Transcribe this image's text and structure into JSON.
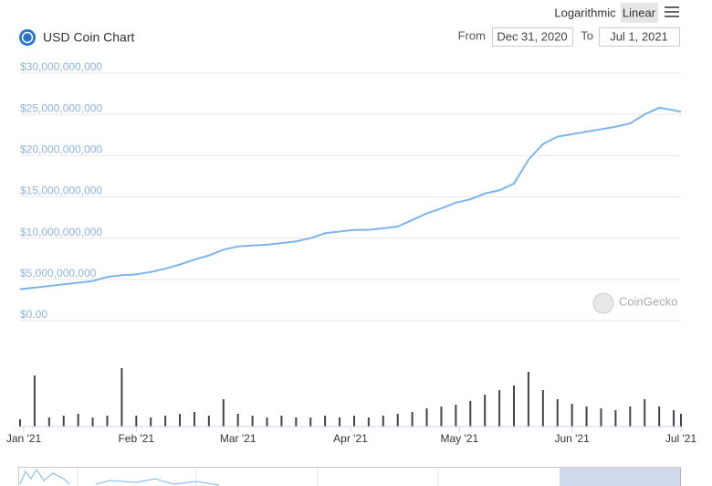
{
  "controls": {
    "scale_options": [
      "Logarithmic",
      "Linear"
    ],
    "from_label": "From",
    "from": "Dec 31, 2020",
    "to_label": "To",
    "to": "Jul 1, 2021"
  },
  "watermark": "CoinGecko",
  "chart_data": [
    {
      "type": "line",
      "title": "USD Coin Chart",
      "color": "#7cb5ec",
      "x": [
        0,
        4,
        8,
        12,
        16,
        20,
        24,
        28,
        32,
        36,
        40,
        44,
        48,
        52,
        56,
        60,
        64,
        68,
        72,
        76,
        80,
        84,
        88,
        92,
        96,
        100,
        104,
        108,
        112,
        116,
        120,
        124,
        128,
        132,
        136,
        140,
        144,
        148,
        152,
        156,
        160,
        164,
        168,
        172,
        176,
        180,
        182
      ],
      "values": [
        3800000000,
        4000000000,
        4200000000,
        4400000000,
        4600000000,
        4800000000,
        5300000000,
        5500000000,
        5600000000,
        5900000000,
        6300000000,
        6800000000,
        7400000000,
        7900000000,
        8600000000,
        9000000000,
        9100000000,
        9200000000,
        9400000000,
        9600000000,
        10000000000,
        10600000000,
        10800000000,
        11000000000,
        11000000000,
        11200000000,
        11400000000,
        12200000000,
        13000000000,
        13600000000,
        14300000000,
        14700000000,
        15400000000,
        15800000000,
        16600000000,
        19500000000,
        21400000000,
        22300000000,
        22600000000,
        22900000000,
        23200000000,
        23500000000,
        23900000000,
        25000000000,
        25800000000,
        25500000000,
        25300000000
      ],
      "xlim": [
        0,
        182
      ],
      "xticks": [
        {
          "value": 1,
          "label": "Jan '21"
        },
        {
          "value": 32,
          "label": "Feb '21"
        },
        {
          "value": 60,
          "label": "Mar '21"
        },
        {
          "value": 91,
          "label": "Apr '21"
        },
        {
          "value": 121,
          "label": "May '21"
        },
        {
          "value": 152,
          "label": "Jun '21"
        },
        {
          "value": 182,
          "label": "Jul '21"
        }
      ],
      "ylim": [
        0,
        30000000000
      ],
      "yticks": [
        {
          "value": 0,
          "label": "$0.00"
        },
        {
          "value": 5000000000,
          "label": "$5,000,000,000"
        },
        {
          "value": 10000000000,
          "label": "$10,000,000,000"
        },
        {
          "value": 15000000000,
          "label": "$15,000,000,000"
        },
        {
          "value": 20000000000,
          "label": "$20,000,000,000"
        },
        {
          "value": 25000000000,
          "label": "$25,000,000,000"
        },
        {
          "value": 30000000000,
          "label": "$30,000,000,000"
        }
      ],
      "grid": true
    },
    {
      "type": "bar",
      "color": "#434348",
      "values": [
        8,
        56,
        10,
        12,
        14,
        10,
        12,
        64,
        12,
        10,
        12,
        14,
        16,
        12,
        30,
        14,
        12,
        10,
        12,
        10,
        10,
        12,
        10,
        12,
        10,
        12,
        14,
        16,
        20,
        22,
        24,
        28,
        35,
        40,
        45,
        60,
        40,
        30,
        25,
        22,
        20,
        18,
        22,
        30,
        22,
        18,
        14
      ],
      "ylim": [
        0,
        70
      ]
    }
  ]
}
